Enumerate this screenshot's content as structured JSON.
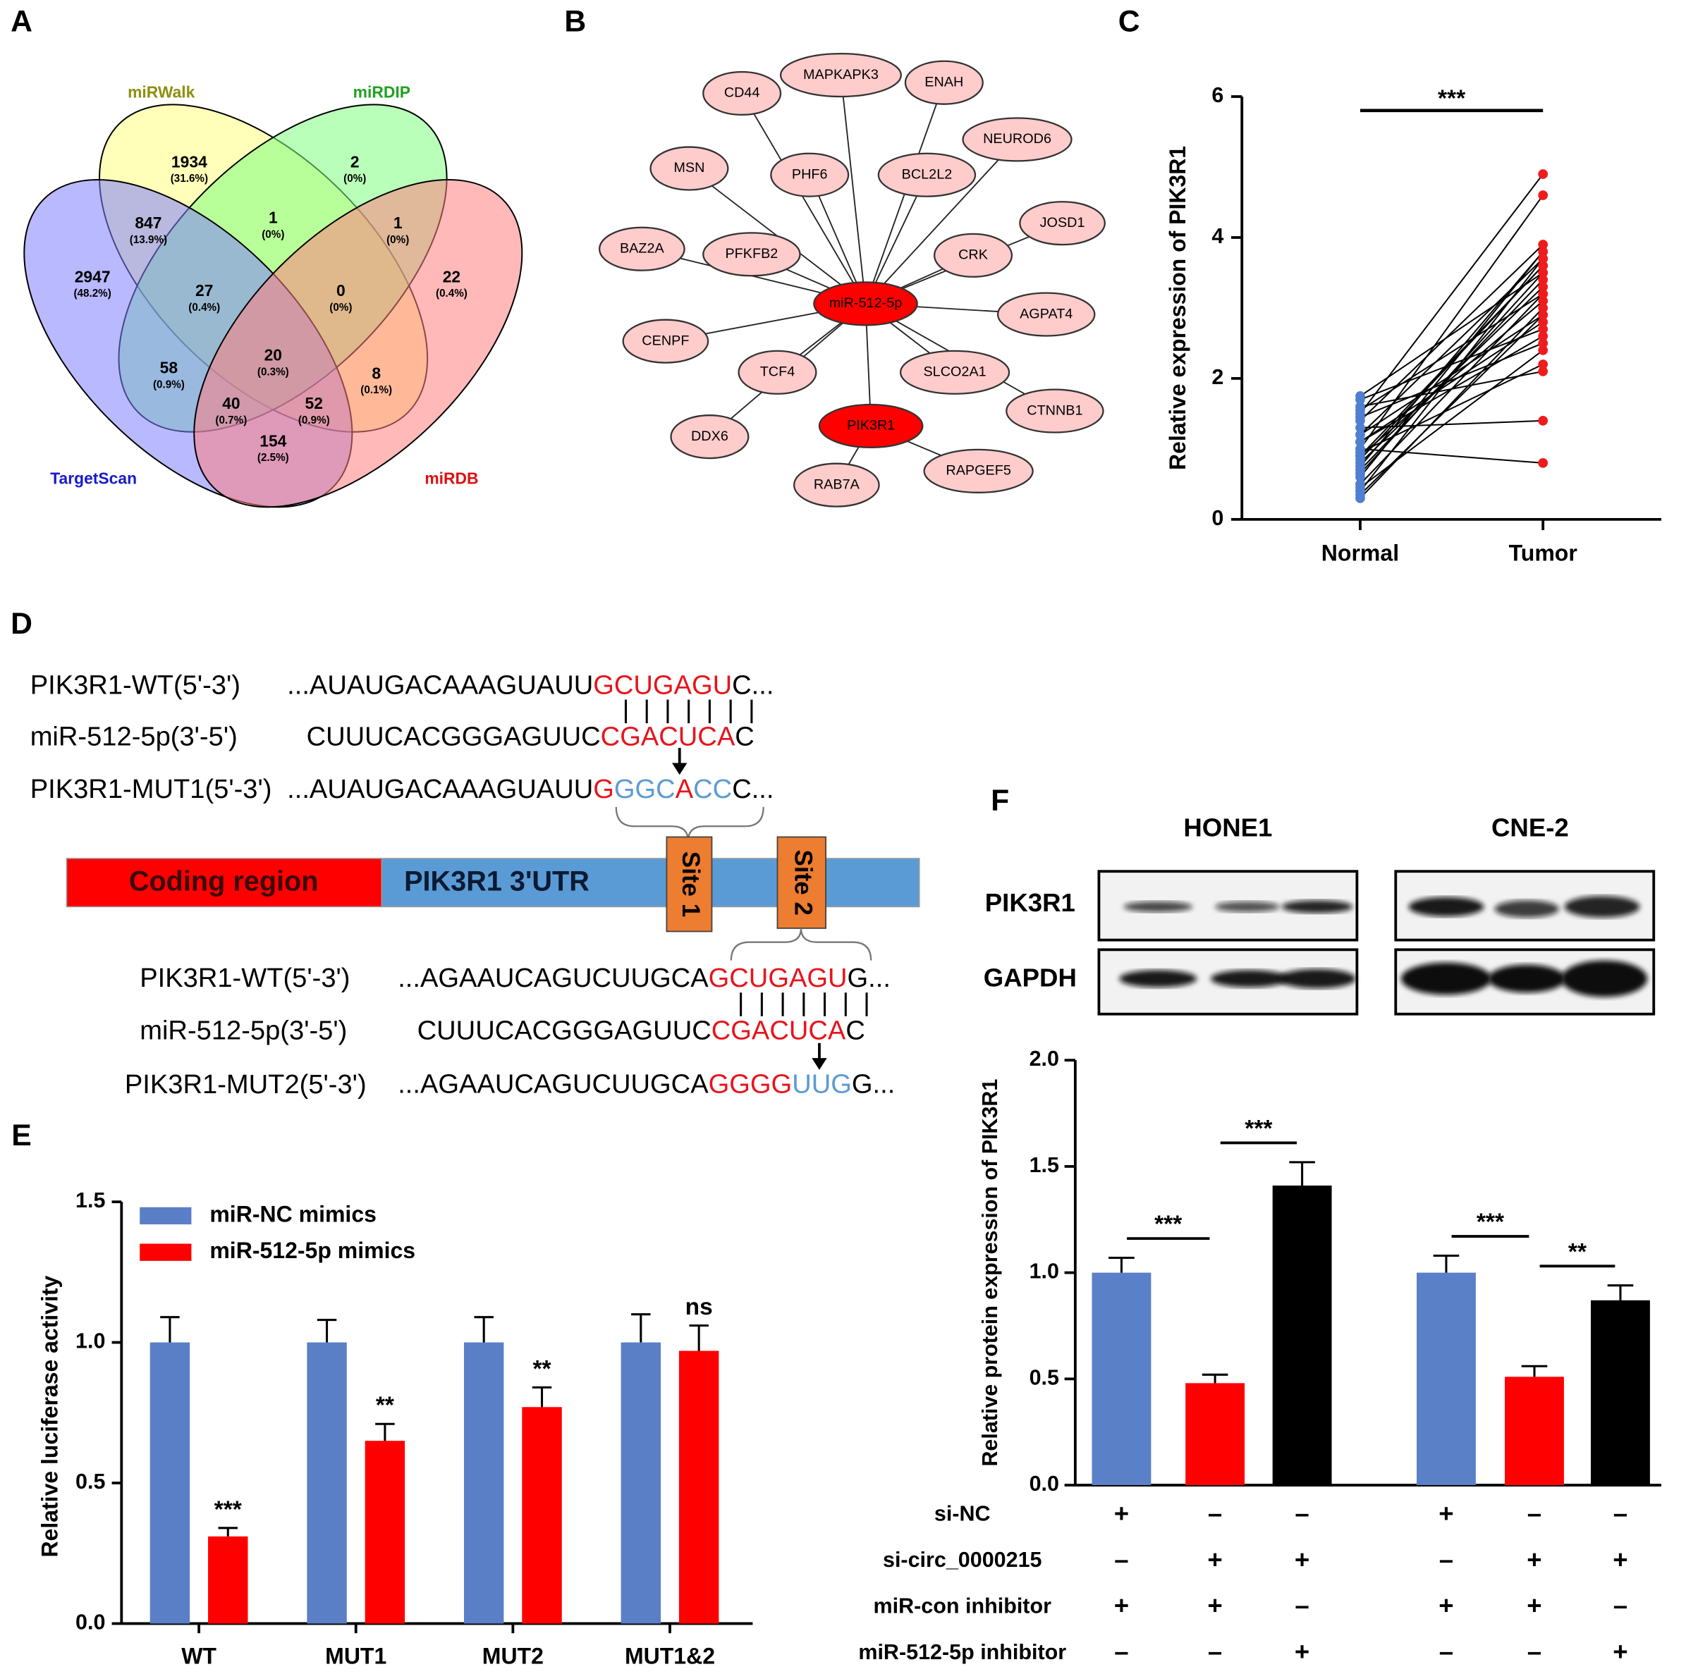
{
  "panel_labels": [
    "A",
    "B",
    "C",
    "D",
    "E",
    "F"
  ],
  "venn": {
    "sets": [
      {
        "name": "miRWalk",
        "color": "#ffff80",
        "label_color": "#8f8f10"
      },
      {
        "name": "miRDIP",
        "color": "#80ff80",
        "label_color": "#22a022"
      },
      {
        "name": "TargetScan",
        "color": "#8080ff",
        "label_color": "#1a1acc"
      },
      {
        "name": "miRDB",
        "color": "#ff8080",
        "label_color": "#e01010"
      }
    ],
    "regions": [
      {
        "count": 1934,
        "percent": "(31.6%)"
      },
      {
        "count": 2,
        "percent": "(0%)"
      },
      {
        "count": 1,
        "percent": "(0%)"
      },
      {
        "count": 847,
        "percent": "(13.9%)"
      },
      {
        "count": 1,
        "percent": "(0%)"
      },
      {
        "count": 2947,
        "percent": "(48.2%)"
      },
      {
        "count": 27,
        "percent": "(0.4%)"
      },
      {
        "count": 0,
        "percent": "(0%)"
      },
      {
        "count": 22,
        "percent": "(0.4%)"
      },
      {
        "count": 20,
        "percent": "(0.3%)"
      },
      {
        "count": 58,
        "percent": "(0.9%)"
      },
      {
        "count": 8,
        "percent": "(0.1%)"
      },
      {
        "count": 40,
        "percent": "(0.7%)"
      },
      {
        "count": 52,
        "percent": "(0.9%)"
      },
      {
        "count": 154,
        "percent": "(2.5%)"
      }
    ]
  },
  "network": {
    "nodes": [
      {
        "label": "miR-512-5p",
        "color": "#ff0000"
      },
      {
        "label": "PIK3R1",
        "color": "#ff0000"
      },
      {
        "label": "CD44",
        "color": "#ffcccc"
      },
      {
        "label": "MAPKAPK3",
        "color": "#ffcccc"
      },
      {
        "label": "ENAH",
        "color": "#ffcccc"
      },
      {
        "label": "NEUROD6",
        "color": "#ffcccc"
      },
      {
        "label": "MSN",
        "color": "#ffcccc"
      },
      {
        "label": "PHF6",
        "color": "#ffcccc"
      },
      {
        "label": "BCL2L2",
        "color": "#ffcccc"
      },
      {
        "label": "JOSD1",
        "color": "#ffcccc"
      },
      {
        "label": "BAZ2A",
        "color": "#ffcccc"
      },
      {
        "label": "PFKFB2",
        "color": "#ffcccc"
      },
      {
        "label": "CRK",
        "color": "#ffcccc"
      },
      {
        "label": "AGPAT4",
        "color": "#ffcccc"
      },
      {
        "label": "CENPF",
        "color": "#ffcccc"
      },
      {
        "label": "TCF4",
        "color": "#ffcccc"
      },
      {
        "label": "SLCO2A1",
        "color": "#ffcccc"
      },
      {
        "label": "CTNNB1",
        "color": "#ffcccc"
      },
      {
        "label": "DDX6",
        "color": "#ffcccc"
      },
      {
        "label": "RAB7A",
        "color": "#ffcccc"
      },
      {
        "label": "RAPGEF5",
        "color": "#ffcccc"
      }
    ]
  },
  "panel_d": {
    "site1_rows": [
      {
        "label": "PIK3R1-WT(5'-3')",
        "segments": [
          {
            "text": "...AUAUGACAAAGUAUU",
            "color": "#000000"
          },
          {
            "text": "GCUGAGU",
            "color": "#e8141c"
          },
          {
            "text": "C...",
            "color": "#000000"
          }
        ]
      },
      {
        "label": "miR-512-5p(3'-5')",
        "segments": [
          {
            "text": "CUUUCACGGGAGUUC",
            "color": "#000000"
          },
          {
            "text": "CGACUCA",
            "color": "#e8141c"
          },
          {
            "text": "C",
            "color": "#000000"
          }
        ]
      },
      {
        "label": "PIK3R1-MUT1(5'-3')",
        "segments": [
          {
            "text": "...AUAUGACAAAGUAUU",
            "color": "#000000"
          },
          {
            "text": "G",
            "color": "#e8141c"
          },
          {
            "text": "GGC",
            "color": "#5b9bd5"
          },
          {
            "text": "A",
            "color": "#e8141c"
          },
          {
            "text": "CC",
            "color": "#5b9bd5"
          },
          {
            "text": "C...",
            "color": "#000000"
          }
        ]
      }
    ],
    "coding_region": "Coding  region",
    "utr": "PIK3R1 3'UTR",
    "sites": [
      "Site 1",
      "Site 2"
    ],
    "site2_rows": [
      {
        "label": "PIK3R1-WT(5'-3')",
        "segments": [
          {
            "text": "...AGAAUCAGUCUUGCA",
            "color": "#000000"
          },
          {
            "text": "GCUGAGU",
            "color": "#e8141c"
          },
          {
            "text": "G...",
            "color": "#000000"
          }
        ]
      },
      {
        "label": "miR-512-5p(3'-5')",
        "segments": [
          {
            "text": "CUUUCACGGGAGUUC",
            "color": "#000000"
          },
          {
            "text": "CGACUCA",
            "color": "#e8141c"
          },
          {
            "text": "C",
            "color": "#000000"
          }
        ]
      },
      {
        "label": "PIK3R1-MUT2(5'-3')",
        "segments": [
          {
            "text": "...AGAAUCAGUCUUGCA",
            "color": "#000000"
          },
          {
            "text": "GGGG",
            "color": "#e8141c"
          },
          {
            "text": "UUG",
            "color": "#5b9bd5"
          },
          {
            "text": "G...",
            "color": "#000000"
          }
        ]
      }
    ]
  },
  "western": {
    "cell_lines": [
      "HONE1",
      "CNE-2"
    ],
    "proteins": [
      "PIK3R1",
      "GAPDH"
    ]
  },
  "chart_data": [
    {
      "type": "scatter",
      "categories": [
        "Normal",
        "Tumor"
      ],
      "ylabel": "Relative  expression of PIK3R1",
      "ylim": [
        0,
        6
      ],
      "yticks": [
        0,
        2,
        4,
        6
      ],
      "annotation": "***",
      "series": [
        {
          "color": "#4f7fd1",
          "values": [
            1.75,
            1.5,
            1.2,
            1.0,
            0.8,
            1.6,
            1.4,
            0.9,
            1.1,
            0.6,
            0.5,
            1.3,
            0.7,
            1.0,
            1.45,
            0.4,
            0.3,
            1.2,
            0.85,
            1.55,
            0.95,
            0.65,
            1.1,
            0.9,
            0.45,
            1.7,
            0.75,
            0.35
          ]
        },
        {
          "color": "#ee1c1c",
          "values": [
            3.5,
            4.9,
            3.7,
            4.6,
            3.3,
            2.1,
            3.9,
            3.6,
            2.8,
            3.8,
            3.2,
            1.4,
            3.4,
            0.8,
            2.5,
            3.7,
            3.0,
            2.9,
            3.6,
            3.2,
            2.2,
            3.5,
            2.6,
            3.1,
            2.4,
            2.7,
            3.8,
            2.9
          ]
        }
      ]
    },
    {
      "type": "bar",
      "ylabel": "Relative luciferase activity",
      "categories": [
        "WT",
        "MUT1",
        "MUT2",
        "MUT1&2"
      ],
      "ylim": [
        0,
        1.5
      ],
      "yticks": [
        {
          "value": 0,
          "label": "0.0"
        },
        0.5,
        {
          "value": 1,
          "label": "1.0"
        },
        1.5
      ],
      "legend": "upper left",
      "series": [
        {
          "name": "miR-NC mimics",
          "color": "#5b7fc7",
          "values": [
            1,
            1,
            1,
            1
          ],
          "errors": [
            0.09,
            0.08,
            0.09,
            0.1
          ]
        },
        {
          "name": "miR-512-5p mimics",
          "color": "#ff0000",
          "values": [
            0.31,
            0.65,
            0.77,
            0.97
          ],
          "errors": [
            0.03,
            0.06,
            0.07,
            0.09
          ]
        }
      ],
      "annotations": [
        "***",
        "**",
        "**",
        "ns"
      ]
    },
    {
      "type": "bar",
      "ylabel": "Relative protein expression of PIK3R1",
      "ylim": [
        0,
        2
      ],
      "yticks": [
        {
          "value": 0,
          "label": "0.0"
        },
        0.5,
        {
          "value": 1,
          "label": "1.0"
        },
        1.5,
        {
          "value": 2,
          "label": "2.0"
        }
      ],
      "values": [
        1.0,
        0.48,
        1.41,
        1.0,
        0.51,
        0.87
      ],
      "errors": [
        0.07,
        0.04,
        0.11,
        0.08,
        0.05,
        0.07
      ],
      "colors": [
        "#5a80c8",
        "#ff0000",
        "#000000",
        "#5a80c8",
        "#ff0000",
        "#000000"
      ],
      "annotations": [
        "***",
        "***",
        "***",
        "**"
      ],
      "conditions": [
        {
          "label": "si-NC",
          "signs": [
            "+",
            "–",
            "–",
            "+",
            "–",
            "–"
          ]
        },
        {
          "label": "si-circ_0000215",
          "signs": [
            "–",
            "+",
            "+",
            "–",
            "+",
            "+"
          ]
        },
        {
          "label": "miR-con inhibitor",
          "signs": [
            "+",
            "+",
            "–",
            "+",
            "+",
            "–"
          ]
        },
        {
          "label": "miR-512-5p inhibitor",
          "signs": [
            "–",
            "–",
            "+",
            "–",
            "–",
            "+"
          ]
        }
      ]
    }
  ]
}
